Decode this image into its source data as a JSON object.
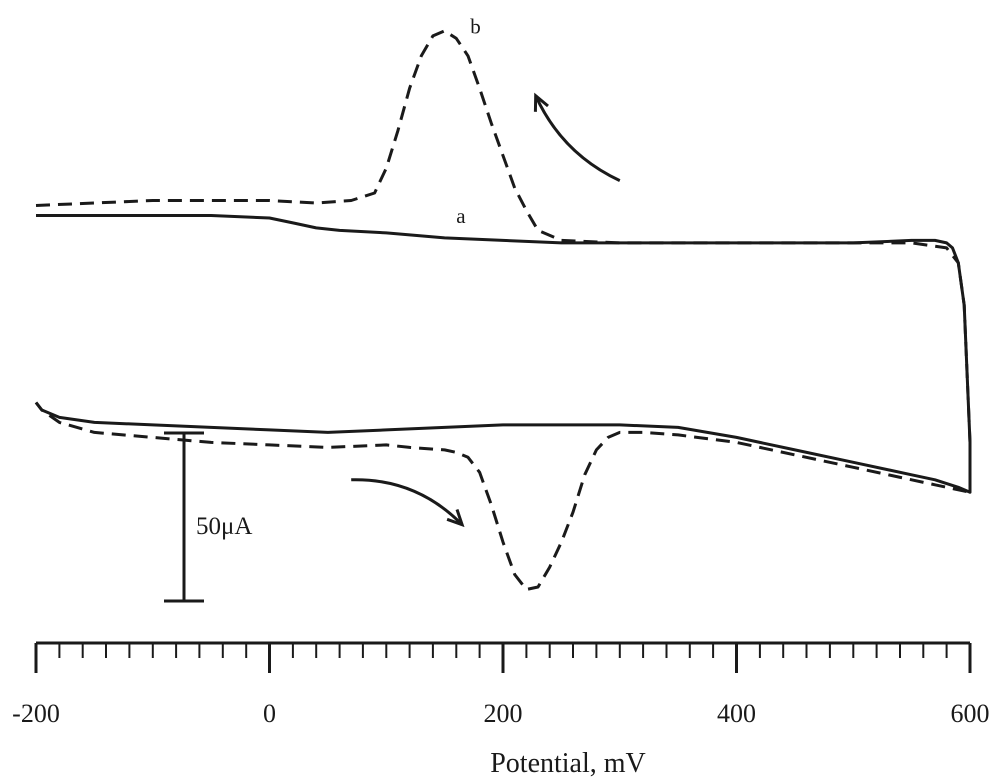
{
  "chart_data": {
    "type": "line",
    "title": "",
    "xlabel": "Potential, mV",
    "ylabel": "",
    "xlim": [
      -200,
      600
    ],
    "x_major_ticks": [
      -200,
      0,
      200,
      400,
      600
    ],
    "x_tick_labels": [
      "-200",
      "0",
      "200",
      "400",
      "600"
    ],
    "x_minor_step": 20,
    "ylim": [
      -150,
      85
    ],
    "grid": false,
    "legend": "none",
    "scale_bar": {
      "label": "50μA",
      "value_uA": 50
    },
    "series": [
      {
        "name": "a",
        "style": "solid",
        "color": "#1a1a1a",
        "x": [
          -200,
          -150,
          -100,
          -50,
          0,
          20,
          40,
          60,
          100,
          150,
          200,
          250,
          300,
          350,
          400,
          450,
          500,
          550,
          570,
          580,
          585,
          590,
          595,
          600,
          600,
          590,
          570,
          550,
          500,
          450,
          400,
          350,
          300,
          250,
          200,
          150,
          100,
          50,
          0,
          -50,
          -100,
          -150,
          -180,
          -195,
          -200
        ],
        "y": [
          1,
          1,
          1,
          1,
          0,
          -2,
          -4,
          -5,
          -6,
          -8,
          -9,
          -10,
          -10,
          -10,
          -10,
          -10,
          -10,
          -9,
          -9,
          -10,
          -12,
          -18,
          -35,
          -90,
          -110,
          -108,
          -105,
          -103,
          -98,
          -93,
          -88,
          -84,
          -83,
          -83,
          -83,
          -84,
          -85,
          -86,
          -85,
          -84,
          -83,
          -82,
          -80,
          -77,
          -74
        ]
      },
      {
        "name": "b",
        "style": "dashed",
        "color": "#1a1a1a",
        "x": [
          -200,
          -150,
          -100,
          -50,
          0,
          40,
          70,
          90,
          100,
          110,
          120,
          130,
          140,
          150,
          160,
          170,
          180,
          190,
          200,
          210,
          220,
          230,
          250,
          300,
          350,
          400,
          450,
          500,
          550,
          580,
          590,
          595,
          600,
          600,
          570,
          550,
          500,
          450,
          400,
          350,
          320,
          300,
          290,
          280,
          270,
          260,
          250,
          240,
          230,
          220,
          210,
          200,
          190,
          180,
          170,
          160,
          150,
          120,
          100,
          50,
          0,
          -50,
          -100,
          -150,
          -180,
          -195,
          -200
        ],
        "y": [
          5,
          6,
          7,
          7,
          7,
          6,
          7,
          10,
          20,
          35,
          52,
          65,
          73,
          75,
          72,
          65,
          52,
          38,
          25,
          12,
          3,
          -5,
          -9,
          -10,
          -10,
          -10,
          -10,
          -10,
          -10,
          -12,
          -18,
          -35,
          -90,
          -110,
          -107,
          -105,
          -100,
          -95,
          -90,
          -87,
          -86,
          -86,
          -88,
          -93,
          -103,
          -118,
          -130,
          -140,
          -148,
          -149,
          -143,
          -130,
          -115,
          -102,
          -96,
          -94,
          -93,
          -92,
          -91,
          -92,
          -91,
          -90,
          -88,
          -86,
          -82,
          -77,
          -74
        ]
      }
    ],
    "annotations": [
      {
        "text": "a",
        "x": 160,
        "y": -2
      },
      {
        "text": "b",
        "x": 172,
        "y": 74
      }
    ],
    "arrows": [
      {
        "direction": "up-left",
        "near_series": "b",
        "from": [
          300,
          15
        ],
        "to": [
          228,
          49
        ]
      },
      {
        "direction": "down-right",
        "near_series": "b",
        "from": [
          70,
          -105
        ],
        "to": [
          165,
          -123
        ]
      }
    ]
  }
}
